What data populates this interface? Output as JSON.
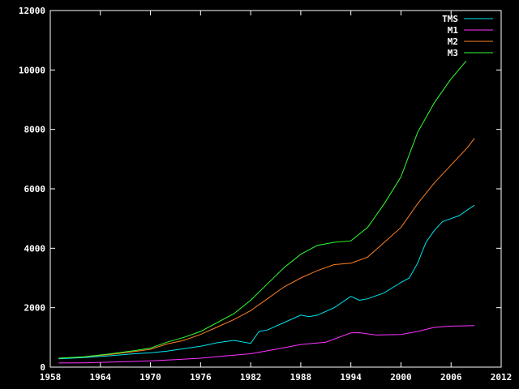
{
  "chart_data": {
    "type": "line",
    "title": "",
    "xlabel": "",
    "ylabel": "",
    "xlim": [
      1958,
      2012
    ],
    "ylim": [
      0,
      12000
    ],
    "x_ticks": [
      1958,
      1964,
      1970,
      1976,
      1982,
      1988,
      1994,
      2000,
      2006,
      2012
    ],
    "y_ticks": [
      0,
      2000,
      4000,
      6000,
      8000,
      10000,
      12000
    ],
    "grid": false,
    "legend_position": "top-right",
    "series": [
      {
        "name": "TMS",
        "color": "#00e5ee",
        "x": [
          1959,
          1962,
          1965,
          1968,
          1970,
          1972,
          1974,
          1976,
          1978,
          1980,
          1982,
          1983,
          1984,
          1986,
          1988,
          1989,
          1990,
          1992,
          1994,
          1995,
          1996,
          1998,
          2000,
          2001,
          2002,
          2003,
          2004,
          2005,
          2006,
          2007,
          2008,
          2008.8
        ],
        "y": [
          280,
          320,
          380,
          450,
          480,
          540,
          620,
          700,
          820,
          900,
          800,
          1200,
          1250,
          1500,
          1750,
          1700,
          1750,
          2000,
          2380,
          2250,
          2300,
          2500,
          2850,
          3000,
          3500,
          4200,
          4600,
          4900,
          5000,
          5100,
          5300,
          5450
        ]
      },
      {
        "name": "M1",
        "color": "#ff33ff",
        "x": [
          1959,
          1962,
          1965,
          1968,
          1970,
          1973,
          1976,
          1979,
          1982,
          1985,
          1988,
          1991,
          1994,
          1995,
          1997,
          2000,
          2002,
          2004,
          2006,
          2008,
          2008.8
        ],
        "y": [
          140,
          145,
          165,
          190,
          210,
          250,
          300,
          380,
          450,
          600,
          760,
          840,
          1150,
          1160,
          1080,
          1100,
          1200,
          1340,
          1380,
          1390,
          1400
        ]
      },
      {
        "name": "M2",
        "color": "#ff7f24",
        "x": [
          1959,
          1962,
          1965,
          1968,
          1970,
          1972,
          1974,
          1976,
          1978,
          1980,
          1982,
          1984,
          1986,
          1988,
          1990,
          1992,
          1994,
          1996,
          1998,
          2000,
          2002,
          2004,
          2006,
          2008,
          2008.8
        ],
        "y": [
          300,
          340,
          420,
          520,
          600,
          780,
          900,
          1100,
          1350,
          1600,
          1900,
          2300,
          2700,
          3000,
          3250,
          3450,
          3500,
          3700,
          4200,
          4700,
          5500,
          6200,
          6800,
          7400,
          7700
        ]
      },
      {
        "name": "M3",
        "color": "#33ff33",
        "x": [
          1959,
          1962,
          1965,
          1968,
          1970,
          1972,
          1974,
          1976,
          1978,
          1980,
          1982,
          1984,
          1986,
          1988,
          1990,
          1992,
          1994,
          1996,
          1998,
          2000,
          2002,
          2004,
          2006,
          2007.8
        ],
        "y": [
          300,
          350,
          440,
          550,
          640,
          840,
          1000,
          1200,
          1500,
          1800,
          2250,
          2800,
          3350,
          3800,
          4100,
          4200,
          4250,
          4700,
          5500,
          6400,
          7900,
          8900,
          9700,
          10300
        ]
      }
    ]
  }
}
